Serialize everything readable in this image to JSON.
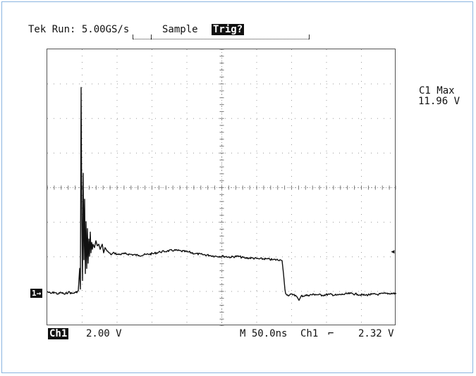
{
  "status": {
    "run_label": "Tek Run: 5.00GS/s",
    "mode_label": "Sample",
    "trig_label": "Trig?"
  },
  "measurement": {
    "name": "C1 Max",
    "value": "11.96 V"
  },
  "channel": {
    "marker": "1",
    "name": "Ch1",
    "scale": "2.00 V"
  },
  "timebase": {
    "label": "M 50.0ns",
    "trigger_source": "Ch1",
    "trigger_slope_icon": "rising-edge-icon",
    "trigger_level": "2.32 V"
  },
  "colors": {
    "trace": "#111111",
    "grid": "#9a9a9a",
    "frame": "#8ab4e0"
  },
  "waveform": {
    "units": "V",
    "samples_note": "",
    "points": [
      [
        0,
        0.15
      ],
      [
        5,
        0.05
      ],
      [
        10,
        0.12
      ],
      [
        15,
        0.02
      ],
      [
        20,
        0.1
      ],
      [
        25,
        0.0
      ],
      [
        30,
        0.14
      ],
      [
        35,
        0.05
      ],
      [
        40,
        0.1
      ],
      [
        44,
        0.2
      ],
      [
        46,
        1.5
      ],
      [
        47,
        0.3
      ],
      [
        48,
        11.96
      ],
      [
        49,
        4.5
      ],
      [
        50,
        0.8
      ],
      [
        51,
        7.0
      ],
      [
        52,
        2.0
      ],
      [
        53,
        5.5
      ],
      [
        54,
        1.2
      ],
      [
        55,
        4.2
      ],
      [
        56,
        1.5
      ],
      [
        57,
        3.8
      ],
      [
        58,
        1.8
      ],
      [
        59,
        3.2
      ],
      [
        60,
        2.2
      ],
      [
        61,
        3.6
      ],
      [
        62,
        2.4
      ],
      [
        63,
        3.0
      ],
      [
        64,
        2.6
      ],
      [
        65,
        2.9
      ],
      [
        67,
        2.7
      ],
      [
        69,
        3.1
      ],
      [
        71,
        2.8
      ],
      [
        73,
        2.9
      ],
      [
        75,
        2.6
      ],
      [
        78,
        2.9
      ],
      [
        80,
        2.4
      ],
      [
        82,
        2.7
      ],
      [
        85,
        2.5
      ],
      [
        90,
        2.3
      ],
      [
        95,
        2.4
      ],
      [
        100,
        2.3
      ],
      [
        110,
        2.35
      ],
      [
        120,
        2.3
      ],
      [
        130,
        2.25
      ],
      [
        140,
        2.3
      ],
      [
        150,
        2.35
      ],
      [
        160,
        2.45
      ],
      [
        170,
        2.5
      ],
      [
        180,
        2.55
      ],
      [
        190,
        2.5
      ],
      [
        200,
        2.45
      ],
      [
        210,
        2.35
      ],
      [
        220,
        2.3
      ],
      [
        230,
        2.25
      ],
      [
        240,
        2.2
      ],
      [
        250,
        2.2
      ],
      [
        260,
        2.15
      ],
      [
        270,
        2.2
      ],
      [
        280,
        2.1
      ],
      [
        290,
        2.1
      ],
      [
        300,
        2.05
      ],
      [
        310,
        2.05
      ],
      [
        320,
        2.0
      ],
      [
        330,
        2.0
      ],
      [
        333,
        1.95
      ],
      [
        335,
        1.2
      ],
      [
        337,
        0.3
      ],
      [
        338,
        0.05
      ],
      [
        340,
        -0.05
      ],
      [
        350,
        0.0
      ],
      [
        355,
        -0.2
      ],
      [
        357,
        -0.35
      ],
      [
        360,
        -0.1
      ],
      [
        370,
        -0.05
      ],
      [
        380,
        0.0
      ],
      [
        390,
        -0.05
      ],
      [
        400,
        0.0
      ],
      [
        410,
        -0.05
      ],
      [
        420,
        0.0
      ],
      [
        430,
        0.05
      ],
      [
        440,
        0.0
      ],
      [
        450,
        -0.05
      ],
      [
        460,
        0.0
      ],
      [
        470,
        0.0
      ],
      [
        480,
        0.05
      ],
      [
        495,
        0.05
      ]
    ]
  }
}
